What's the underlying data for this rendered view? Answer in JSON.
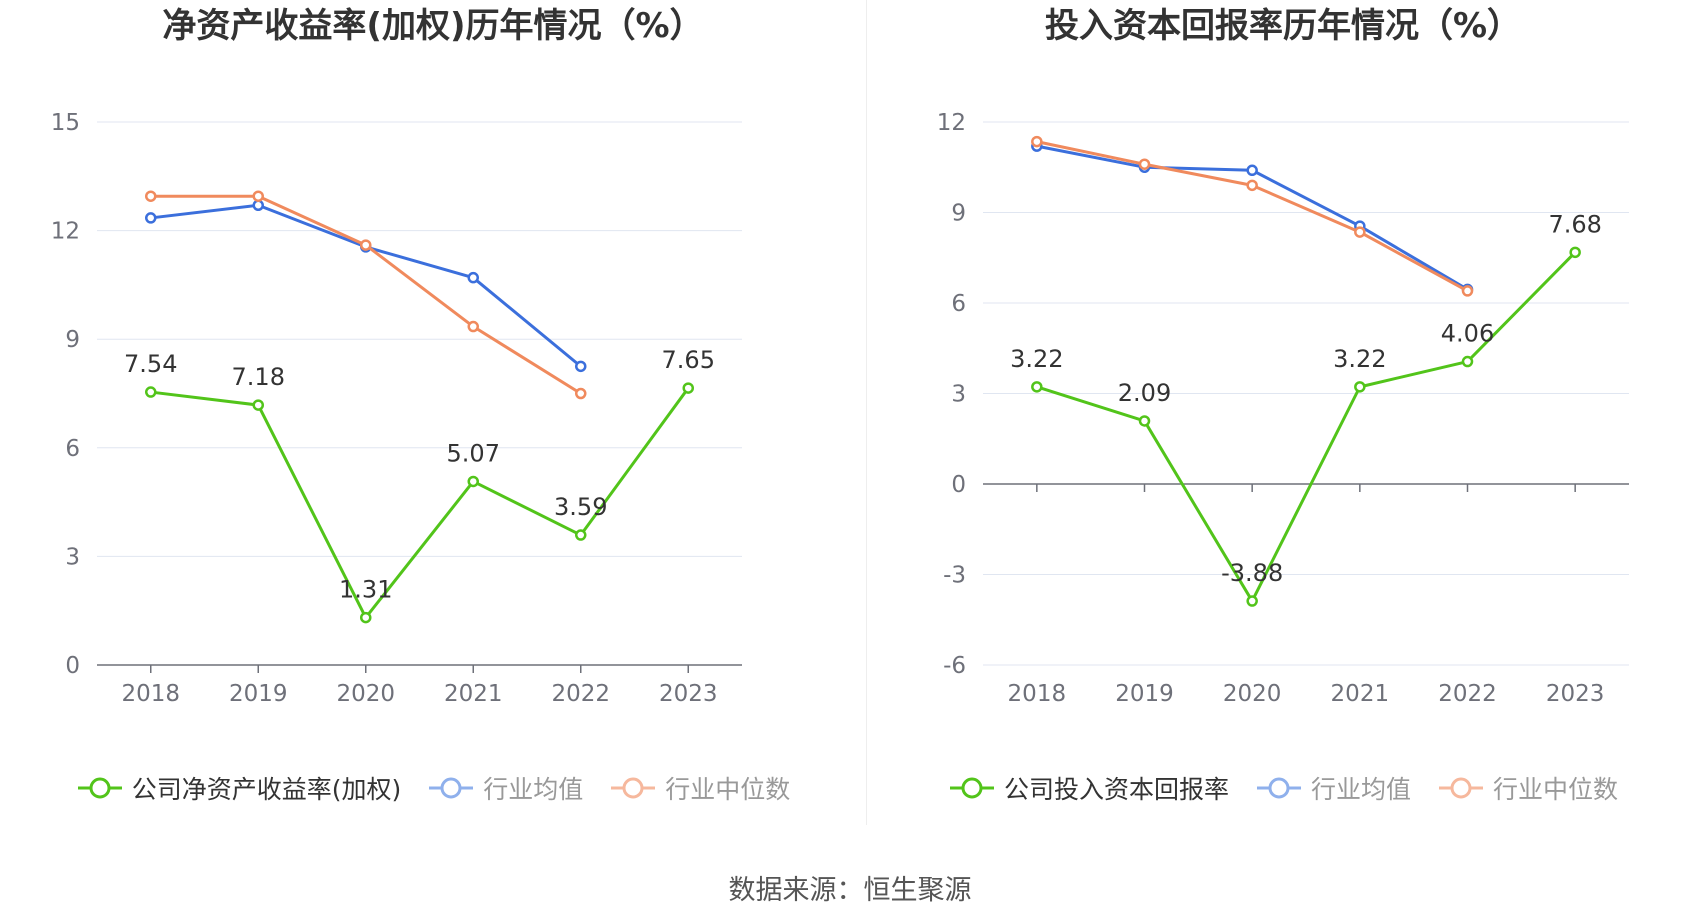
{
  "footer": {
    "source": "数据来源：恒生聚源"
  },
  "chart_data": [
    {
      "type": "line",
      "title": "净资产收益率(加权)历年情况（%）",
      "categories": [
        "2018",
        "2019",
        "2020",
        "2021",
        "2022",
        "2023"
      ],
      "ylim": [
        0,
        15
      ],
      "yticks": [
        0,
        3,
        6,
        9,
        12,
        15
      ],
      "grid": true,
      "legend_position": "bottom",
      "series": [
        {
          "name": "公司净资产收益率(加权)",
          "color": "#52c41a",
          "values": [
            7.54,
            7.18,
            1.31,
            5.07,
            3.59,
            7.65
          ],
          "labels": true
        },
        {
          "name": "行业均值",
          "color": "#3b6fdc",
          "values": [
            12.35,
            12.7,
            11.55,
            10.7,
            8.25,
            null
          ],
          "labels": false
        },
        {
          "name": "行业中位数",
          "color": "#f08a5d",
          "values": [
            12.95,
            12.95,
            11.6,
            9.35,
            7.5,
            null
          ],
          "labels": false
        }
      ]
    },
    {
      "type": "line",
      "title": "投入资本回报率历年情况（%）",
      "categories": [
        "2018",
        "2019",
        "2020",
        "2021",
        "2022",
        "2023"
      ],
      "ylim": [
        -6,
        12
      ],
      "yticks": [
        -6,
        -3,
        0,
        3,
        6,
        9,
        12
      ],
      "grid": true,
      "legend_position": "bottom",
      "series": [
        {
          "name": "公司投入资本回报率",
          "color": "#52c41a",
          "values": [
            3.22,
            2.09,
            -3.88,
            3.22,
            4.06,
            7.68
          ],
          "labels": true
        },
        {
          "name": "行业均值",
          "color": "#3b6fdc",
          "values": [
            11.2,
            10.5,
            10.4,
            8.55,
            6.45,
            null
          ],
          "labels": false
        },
        {
          "name": "行业中位数",
          "color": "#f08a5d",
          "values": [
            11.35,
            10.6,
            9.9,
            8.35,
            6.4,
            null
          ],
          "labels": false
        }
      ]
    }
  ]
}
